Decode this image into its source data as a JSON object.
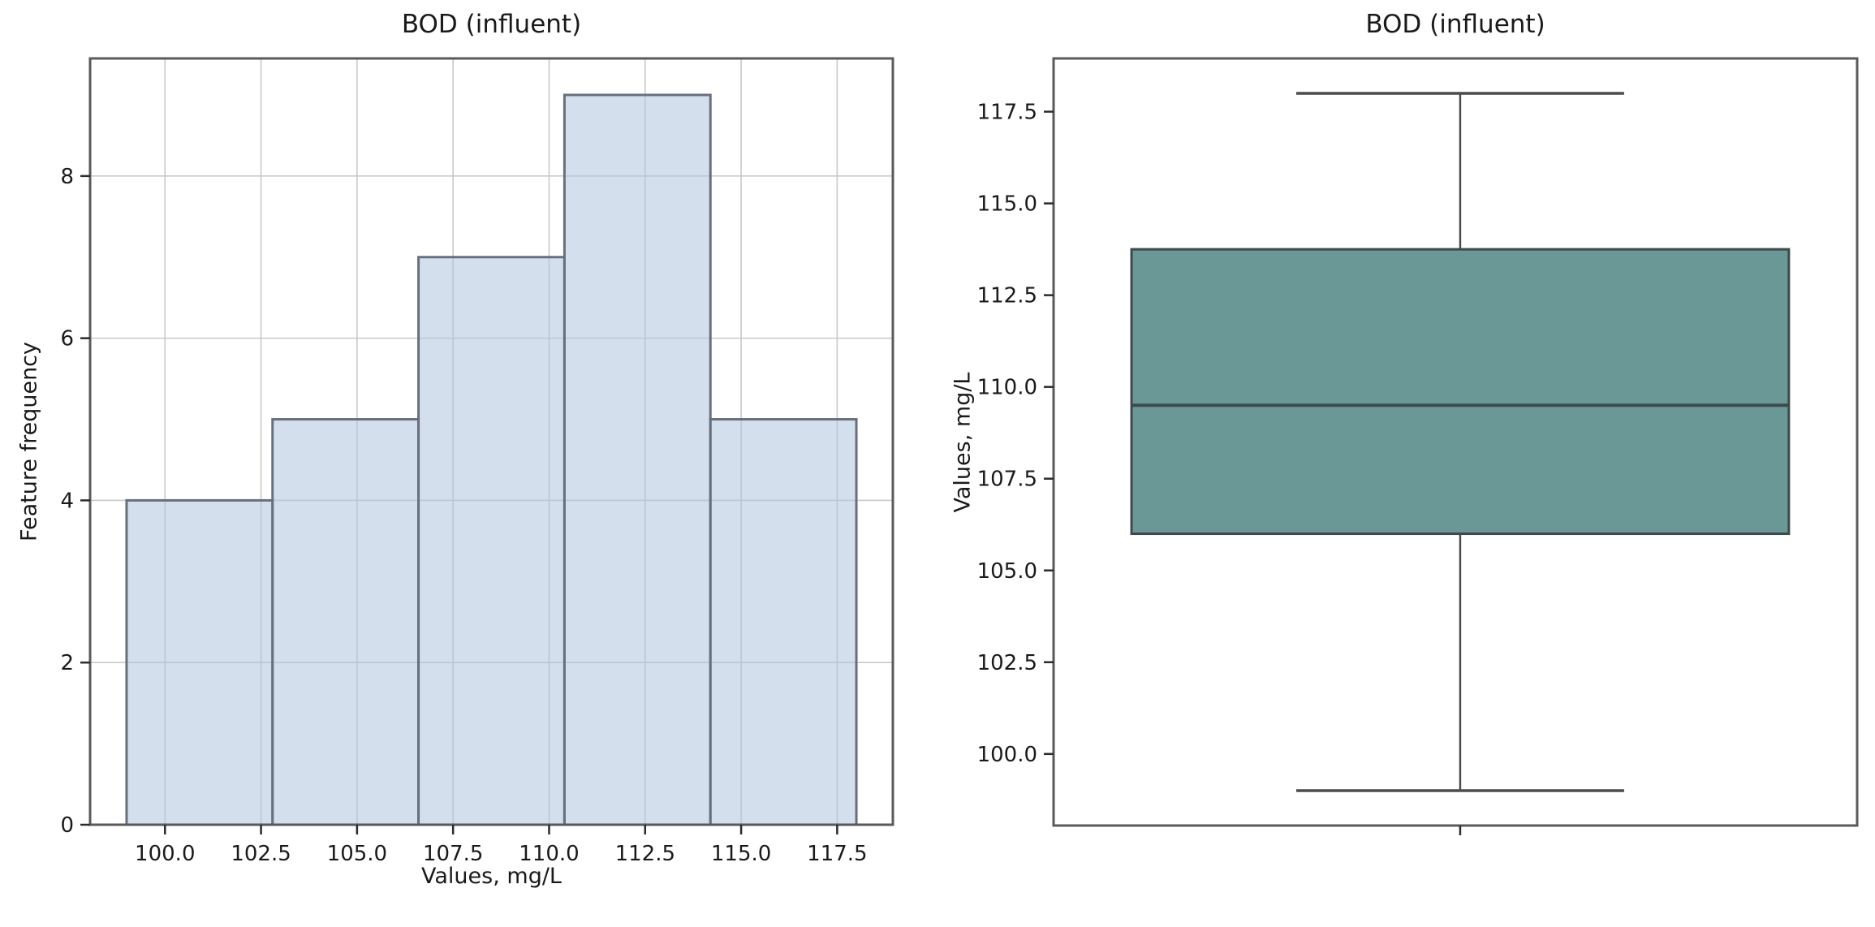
{
  "figure": {
    "background": "#ffffff",
    "text_color": "#1a1a1a",
    "grid_color": "#c9c9c9",
    "spine_color": "#5a5a5a",
    "tick_color": "#2b2b2b"
  },
  "chart_data": [
    {
      "type": "bar",
      "subtype": "histogram",
      "title": "BOD (influent)",
      "xlabel": "Values, mg/L",
      "ylabel": "Feature frequency",
      "bin_edges": [
        99.0,
        102.8,
        106.6,
        110.4,
        114.2,
        118.0
      ],
      "values": [
        4,
        5,
        7,
        9,
        5
      ],
      "xlim": [
        98.05,
        118.95
      ],
      "ylim": [
        0,
        9.45
      ],
      "xticks": [
        100.0,
        102.5,
        105.0,
        107.5,
        110.0,
        112.5,
        115.0,
        117.5
      ],
      "xtick_labels": [
        "100.0",
        "102.5",
        "105.0",
        "107.5",
        "110.0",
        "112.5",
        "115.0",
        "117.5"
      ],
      "yticks": [
        0,
        2,
        4,
        6,
        8
      ],
      "ytick_labels": [
        "0",
        "2",
        "4",
        "6",
        "8"
      ],
      "grid": true,
      "legend": "none",
      "bar_fill": "rgba(176,196,222,0.55)",
      "bar_edge": "#68707d"
    },
    {
      "type": "box",
      "title": "BOD (influent)",
      "xlabel": "",
      "ylabel": "Values, mg/L",
      "stats": {
        "whisker_low": 99.0,
        "q1": 106.0,
        "median": 109.5,
        "q3": 113.75,
        "whisker_high": 118.0
      },
      "ylim": [
        98.05,
        118.95
      ],
      "yticks": [
        100.0,
        102.5,
        105.0,
        107.5,
        110.0,
        112.5,
        115.0,
        117.5
      ],
      "ytick_labels": [
        "100.0",
        "102.5",
        "105.0",
        "107.5",
        "110.0",
        "112.5",
        "115.0",
        "117.5"
      ],
      "grid": false,
      "legend": "none",
      "box_fill": "#6a9897",
      "box_edge": "#3e4a4a",
      "median_color": "#3e4a4a",
      "whisker_color": "#4c4c4c"
    }
  ]
}
